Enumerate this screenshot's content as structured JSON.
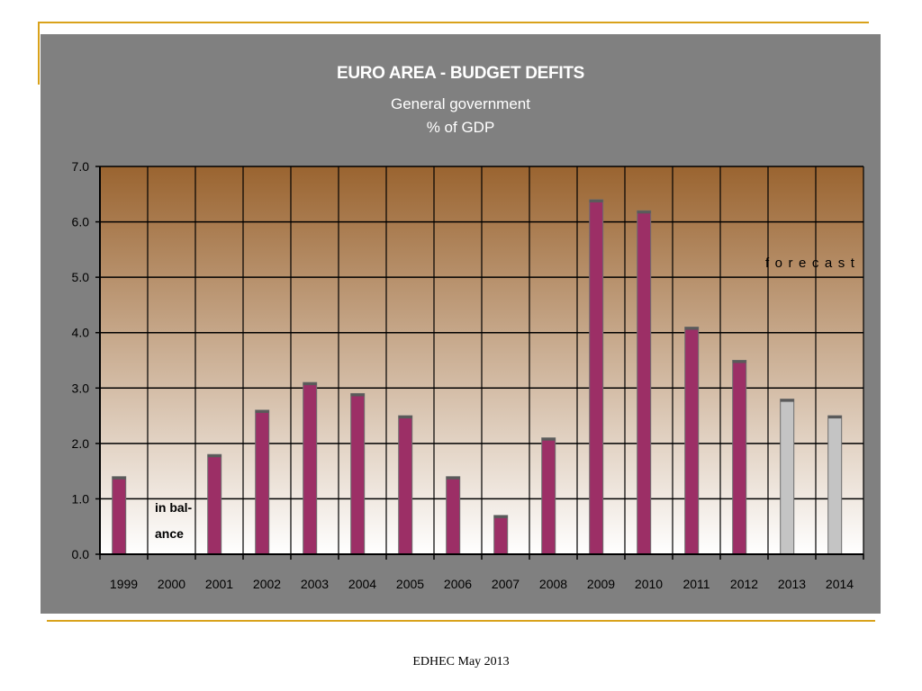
{
  "footer": "EDHEC May 2013",
  "annotations": {
    "balance_line1": "in bal-",
    "balance_line2": "ance",
    "forecast": "forecast"
  },
  "colors": {
    "panel": "#808080",
    "bar_actual": "#9c2f66",
    "bar_forecast": "#c4c4c4",
    "gradient_top": "#9a6430",
    "gradient_bottom": "#ffffff",
    "accent_lines": "#d9a21b"
  },
  "chart_data": {
    "type": "bar",
    "title": "EURO  AREA  -  BUDGET DEFITS",
    "subtitle_line1": "General government",
    "subtitle_line2": "%  of GDP",
    "categories": [
      "1999",
      "2000",
      "2001",
      "2002",
      "2003",
      "2004",
      "2005",
      "2006",
      "2007",
      "2008",
      "2009",
      "2010",
      "2011",
      "2012",
      "2013",
      "2014"
    ],
    "values": [
      1.4,
      0.0,
      1.8,
      2.6,
      3.1,
      2.9,
      2.5,
      1.4,
      0.7,
      2.1,
      6.4,
      6.2,
      4.1,
      3.5,
      2.8,
      2.5
    ],
    "forecast": [
      false,
      false,
      false,
      false,
      false,
      false,
      false,
      false,
      false,
      false,
      false,
      false,
      false,
      false,
      true,
      true
    ],
    "ylim": [
      0,
      7
    ],
    "yticks": [
      "0.0",
      "1.0",
      "2.0",
      "3.0",
      "4.0",
      "5.0",
      "6.0",
      "7.0"
    ],
    "xlabel": "",
    "ylabel": "",
    "grid": true
  }
}
